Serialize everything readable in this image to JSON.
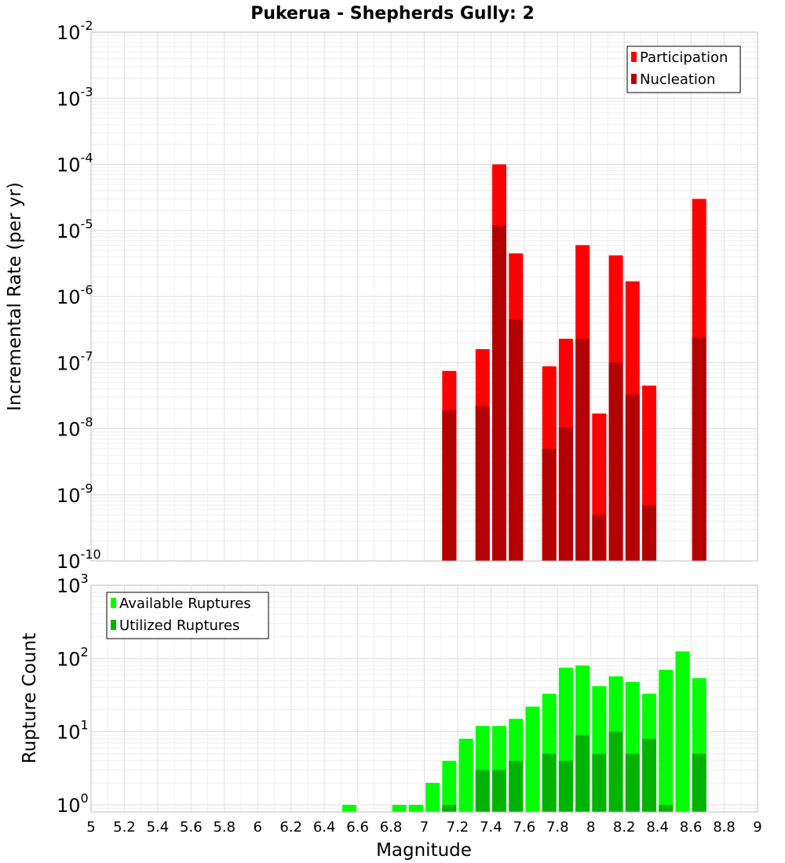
{
  "title": "Pukerua - Shepherds Gully: 2",
  "colors": {
    "participation": "#ff0000",
    "nucleation": "#b30000",
    "available": "#00ff00",
    "utilized": "#00b300",
    "grid": "#e6e6e6",
    "frame": "#bdbdbd"
  },
  "chart_data": [
    {
      "type": "bar",
      "ylabel": "Incremental Rate (per yr)",
      "yscale": "log",
      "ylim": [
        1e-10,
        0.01
      ],
      "y_ticks": [
        {
          "base": "10",
          "exp": "-10"
        },
        {
          "base": "10",
          "exp": "-9"
        },
        {
          "base": "10",
          "exp": "-8"
        },
        {
          "base": "10",
          "exp": "-7"
        },
        {
          "base": "10",
          "exp": "-6"
        },
        {
          "base": "10",
          "exp": "-5"
        },
        {
          "base": "10",
          "exp": "-4"
        },
        {
          "base": "10",
          "exp": "-3"
        },
        {
          "base": "10",
          "exp": "-2"
        }
      ],
      "xlim": [
        5,
        9
      ],
      "grid": true,
      "legend": "top-right",
      "series": [
        {
          "name": "Participation",
          "x": [
            7.15,
            7.35,
            7.45,
            7.55,
            7.75,
            7.85,
            7.95,
            8.05,
            8.15,
            8.25,
            8.35,
            8.65
          ],
          "values": [
            7.5e-08,
            1.6e-07,
            0.0001,
            4.5e-06,
            8.8e-08,
            2.3e-07,
            6e-06,
            1.7e-08,
            4.2e-06,
            1.7e-06,
            4.5e-08,
            3e-05
          ]
        },
        {
          "name": "Nucleation",
          "x": [
            7.15,
            7.35,
            7.45,
            7.55,
            7.75,
            7.85,
            7.95,
            8.05,
            8.15,
            8.25,
            8.35,
            8.65
          ],
          "values": [
            1.9e-08,
            2.2e-08,
            1.2e-05,
            4.5e-07,
            5e-09,
            1.05e-08,
            2.3e-07,
            5e-10,
            1e-07,
            3.3e-08,
            7e-10,
            2.4e-07
          ]
        }
      ]
    },
    {
      "type": "bar",
      "ylabel": "Rupture Count",
      "xlabel": "Magnitude",
      "yscale": "log",
      "ylim": [
        0.8,
        1000
      ],
      "y_ticks": [
        {
          "base": "10",
          "exp": "0",
          "value": 1
        },
        {
          "base": "10",
          "exp": "1",
          "value": 10
        },
        {
          "base": "10",
          "exp": "2",
          "value": 100
        },
        {
          "base": "10",
          "exp": "3",
          "value": 1000
        }
      ],
      "xlim": [
        5,
        9
      ],
      "x_ticks": [
        "5",
        "5.2",
        "5.4",
        "5.6",
        "5.8",
        "6",
        "6.2",
        "6.4",
        "6.6",
        "6.8",
        "7",
        "7.2",
        "7.4",
        "7.6",
        "7.8",
        "8",
        "8.2",
        "8.4",
        "8.6",
        "8.8",
        "9"
      ],
      "grid": true,
      "legend": "top-left",
      "series": [
        {
          "name": "Available Ruptures",
          "x": [
            6.55,
            6.85,
            6.95,
            7.05,
            7.15,
            7.25,
            7.35,
            7.45,
            7.55,
            7.65,
            7.75,
            7.85,
            7.95,
            8.05,
            8.15,
            8.25,
            8.35,
            8.45,
            8.55,
            8.65
          ],
          "values": [
            1,
            1,
            1,
            2,
            4,
            8,
            12,
            12,
            15,
            22,
            33,
            75,
            80,
            42,
            57,
            48,
            33,
            70,
            125,
            54
          ]
        },
        {
          "name": "Utilized Ruptures",
          "x": [
            7.15,
            7.35,
            7.45,
            7.55,
            7.75,
            7.85,
            7.95,
            8.05,
            8.15,
            8.25,
            8.35,
            8.45,
            8.65
          ],
          "values": [
            1,
            3,
            3,
            4,
            5,
            4,
            9,
            5,
            10,
            5,
            8,
            1,
            5
          ]
        }
      ]
    }
  ]
}
